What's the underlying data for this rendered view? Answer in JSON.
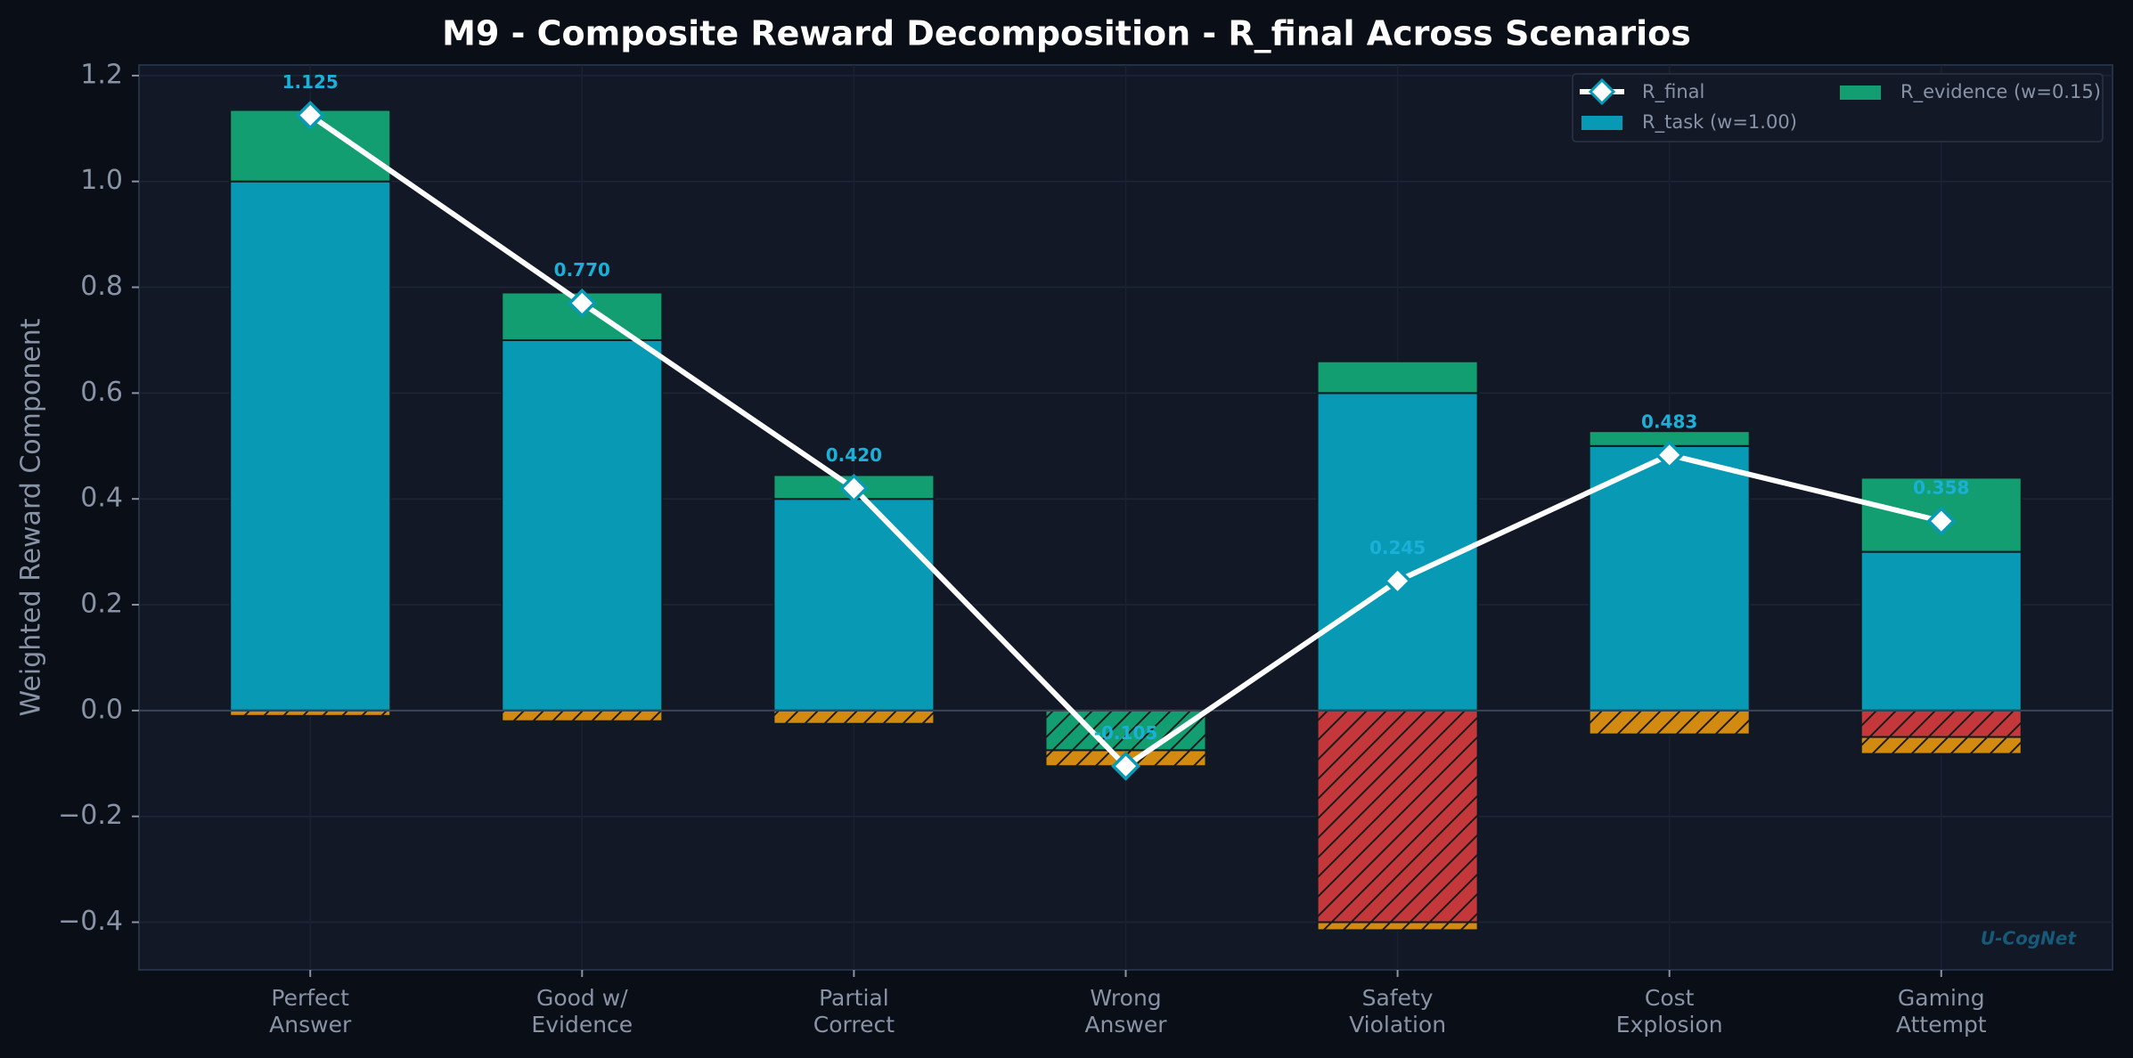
{
  "chart_data": {
    "type": "bar",
    "title": "M9 - Composite Reward Decomposition - R_final Across Scenarios",
    "ylabel": "Weighted Reward Component",
    "watermark": "U-CogNet",
    "categories": [
      "Perfect\nAnswer",
      "Good w/\nEvidence",
      "Partial\nCorrect",
      "Wrong\nAnswer",
      "Safety\nViolation",
      "Cost\nExplosion",
      "Gaming\nAttempt"
    ],
    "series": [
      {
        "name": "R_task (w=1.00)",
        "color": "#0899b5",
        "values": [
          1.0,
          0.7,
          0.4,
          0,
          0.6,
          0.5,
          0.3
        ]
      },
      {
        "name": "R_evidence (w=0.15)",
        "color": "#139e72",
        "values": [
          0.135,
          0.09,
          0.045,
          -0.075,
          0.06,
          0.028,
          0.14
        ]
      },
      {
        "color": "#c4383c",
        "values": [
          0,
          0,
          0,
          0,
          -0.4,
          0,
          -0.05
        ]
      },
      {
        "color": "#d28a10",
        "values": [
          -0.01,
          -0.02,
          -0.025,
          -0.03,
          -0.015,
          -0.045,
          -0.032
        ]
      }
    ],
    "line": {
      "name": "R_final",
      "color": "#ffffff",
      "marker_edge": "#0899b5",
      "values": [
        1.125,
        0.77,
        0.42,
        -0.105,
        0.245,
        0.483,
        0.358
      ],
      "value_labels": [
        "1.125",
        "0.770",
        "0.420",
        "-0.105",
        "0.245",
        "0.483",
        "0.358"
      ]
    },
    "ylim": [
      -0.49,
      1.22
    ],
    "yticks": [
      {
        "value": -0.4,
        "label": "−0.4"
      },
      {
        "value": -0.2,
        "label": "−0.2"
      },
      {
        "value": 0,
        "label": "0.0"
      },
      0.2,
      0.4,
      0.6,
      0.8,
      {
        "value": 1,
        "label": "1.0"
      },
      1.2
    ],
    "grid": true,
    "legend": "upper right"
  }
}
